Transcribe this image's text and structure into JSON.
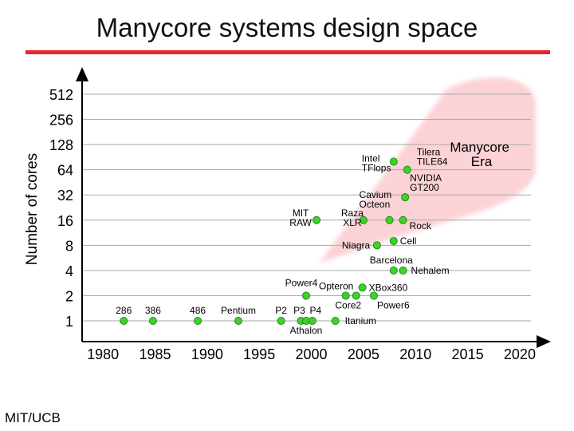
{
  "slide": {
    "title": "Manycore systems design space",
    "footer": "MIT/UCB"
  },
  "chart_data": {
    "type": "scatter",
    "title": "",
    "xlabel": "",
    "ylabel": "Number of cores",
    "y_scale": "log2",
    "xlim": [
      1978,
      2021
    ],
    "ylim": [
      0.85,
      600
    ],
    "x_ticks": [
      1980,
      1985,
      1990,
      1995,
      2000,
      2005,
      2010,
      2015,
      2020
    ],
    "y_ticks": [
      1,
      2,
      4,
      8,
      16,
      32,
      64,
      128,
      256,
      512
    ],
    "grid": "horizontal",
    "point_color": "#3ed12a",
    "region": {
      "label_lines": [
        "Manycore",
        "Era"
      ],
      "color": "#fbd0d4"
    },
    "points": [
      {
        "x": 1982.0,
        "y": 1,
        "label_lines": [
          "286"
        ]
      },
      {
        "x": 1984.8,
        "y": 1,
        "label_lines": [
          "386"
        ]
      },
      {
        "x": 1989.1,
        "y": 1,
        "label_lines": [
          "486"
        ]
      },
      {
        "x": 1993.0,
        "y": 1,
        "label_lines": [
          "Pentium"
        ]
      },
      {
        "x": 1997.1,
        "y": 1,
        "label_lines": [
          "P2"
        ]
      },
      {
        "x": 1999.0,
        "y": 1,
        "label_lines": [
          "P3"
        ]
      },
      {
        "x": 1999.5,
        "y": 1,
        "label_lines": [
          "Athalon"
        ]
      },
      {
        "x": 2000.1,
        "y": 1,
        "label_lines": [
          "P4"
        ]
      },
      {
        "x": 2002.3,
        "y": 1,
        "label_lines": [
          "Itanium"
        ]
      },
      {
        "x": 1999.5,
        "y": 2,
        "label_lines": [
          "Power4"
        ]
      },
      {
        "x": 2003.3,
        "y": 2,
        "label_lines": [
          "Opteron"
        ]
      },
      {
        "x": 2004.3,
        "y": 2,
        "label_lines": [
          "Core2"
        ]
      },
      {
        "x": 2006.0,
        "y": 2,
        "label_lines": [
          "Power6"
        ]
      },
      {
        "x": 2004.9,
        "y": 2.5,
        "label_lines": [
          "XBox360"
        ]
      },
      {
        "x": 2007.9,
        "y": 4,
        "label_lines": [
          "Barcelona"
        ]
      },
      {
        "x": 2008.8,
        "y": 4,
        "label_lines": [
          "Nehalem"
        ]
      },
      {
        "x": 2006.3,
        "y": 8,
        "label_lines": [
          "Niagra"
        ]
      },
      {
        "x": 2007.9,
        "y": 9,
        "label_lines": [
          "Cell"
        ]
      },
      {
        "x": 2000.5,
        "y": 16,
        "label_lines": [
          "MIT",
          "RAW"
        ]
      },
      {
        "x": 2005.0,
        "y": 16,
        "label_lines": [
          "Raza",
          "XLR"
        ]
      },
      {
        "x": 2007.5,
        "y": 16,
        "label_lines": [
          "Cavium",
          "Octeon"
        ]
      },
      {
        "x": 2008.8,
        "y": 16,
        "label_lines": [
          "Rock"
        ]
      },
      {
        "x": 2009.0,
        "y": 30,
        "label_lines": [
          "NVIDIA",
          "GT200"
        ]
      },
      {
        "x": 2007.9,
        "y": 80,
        "label_lines": [
          "Intel",
          "TFlops"
        ]
      },
      {
        "x": 2009.2,
        "y": 64,
        "label_lines": [
          "Tilera",
          "TILE64"
        ]
      }
    ]
  }
}
